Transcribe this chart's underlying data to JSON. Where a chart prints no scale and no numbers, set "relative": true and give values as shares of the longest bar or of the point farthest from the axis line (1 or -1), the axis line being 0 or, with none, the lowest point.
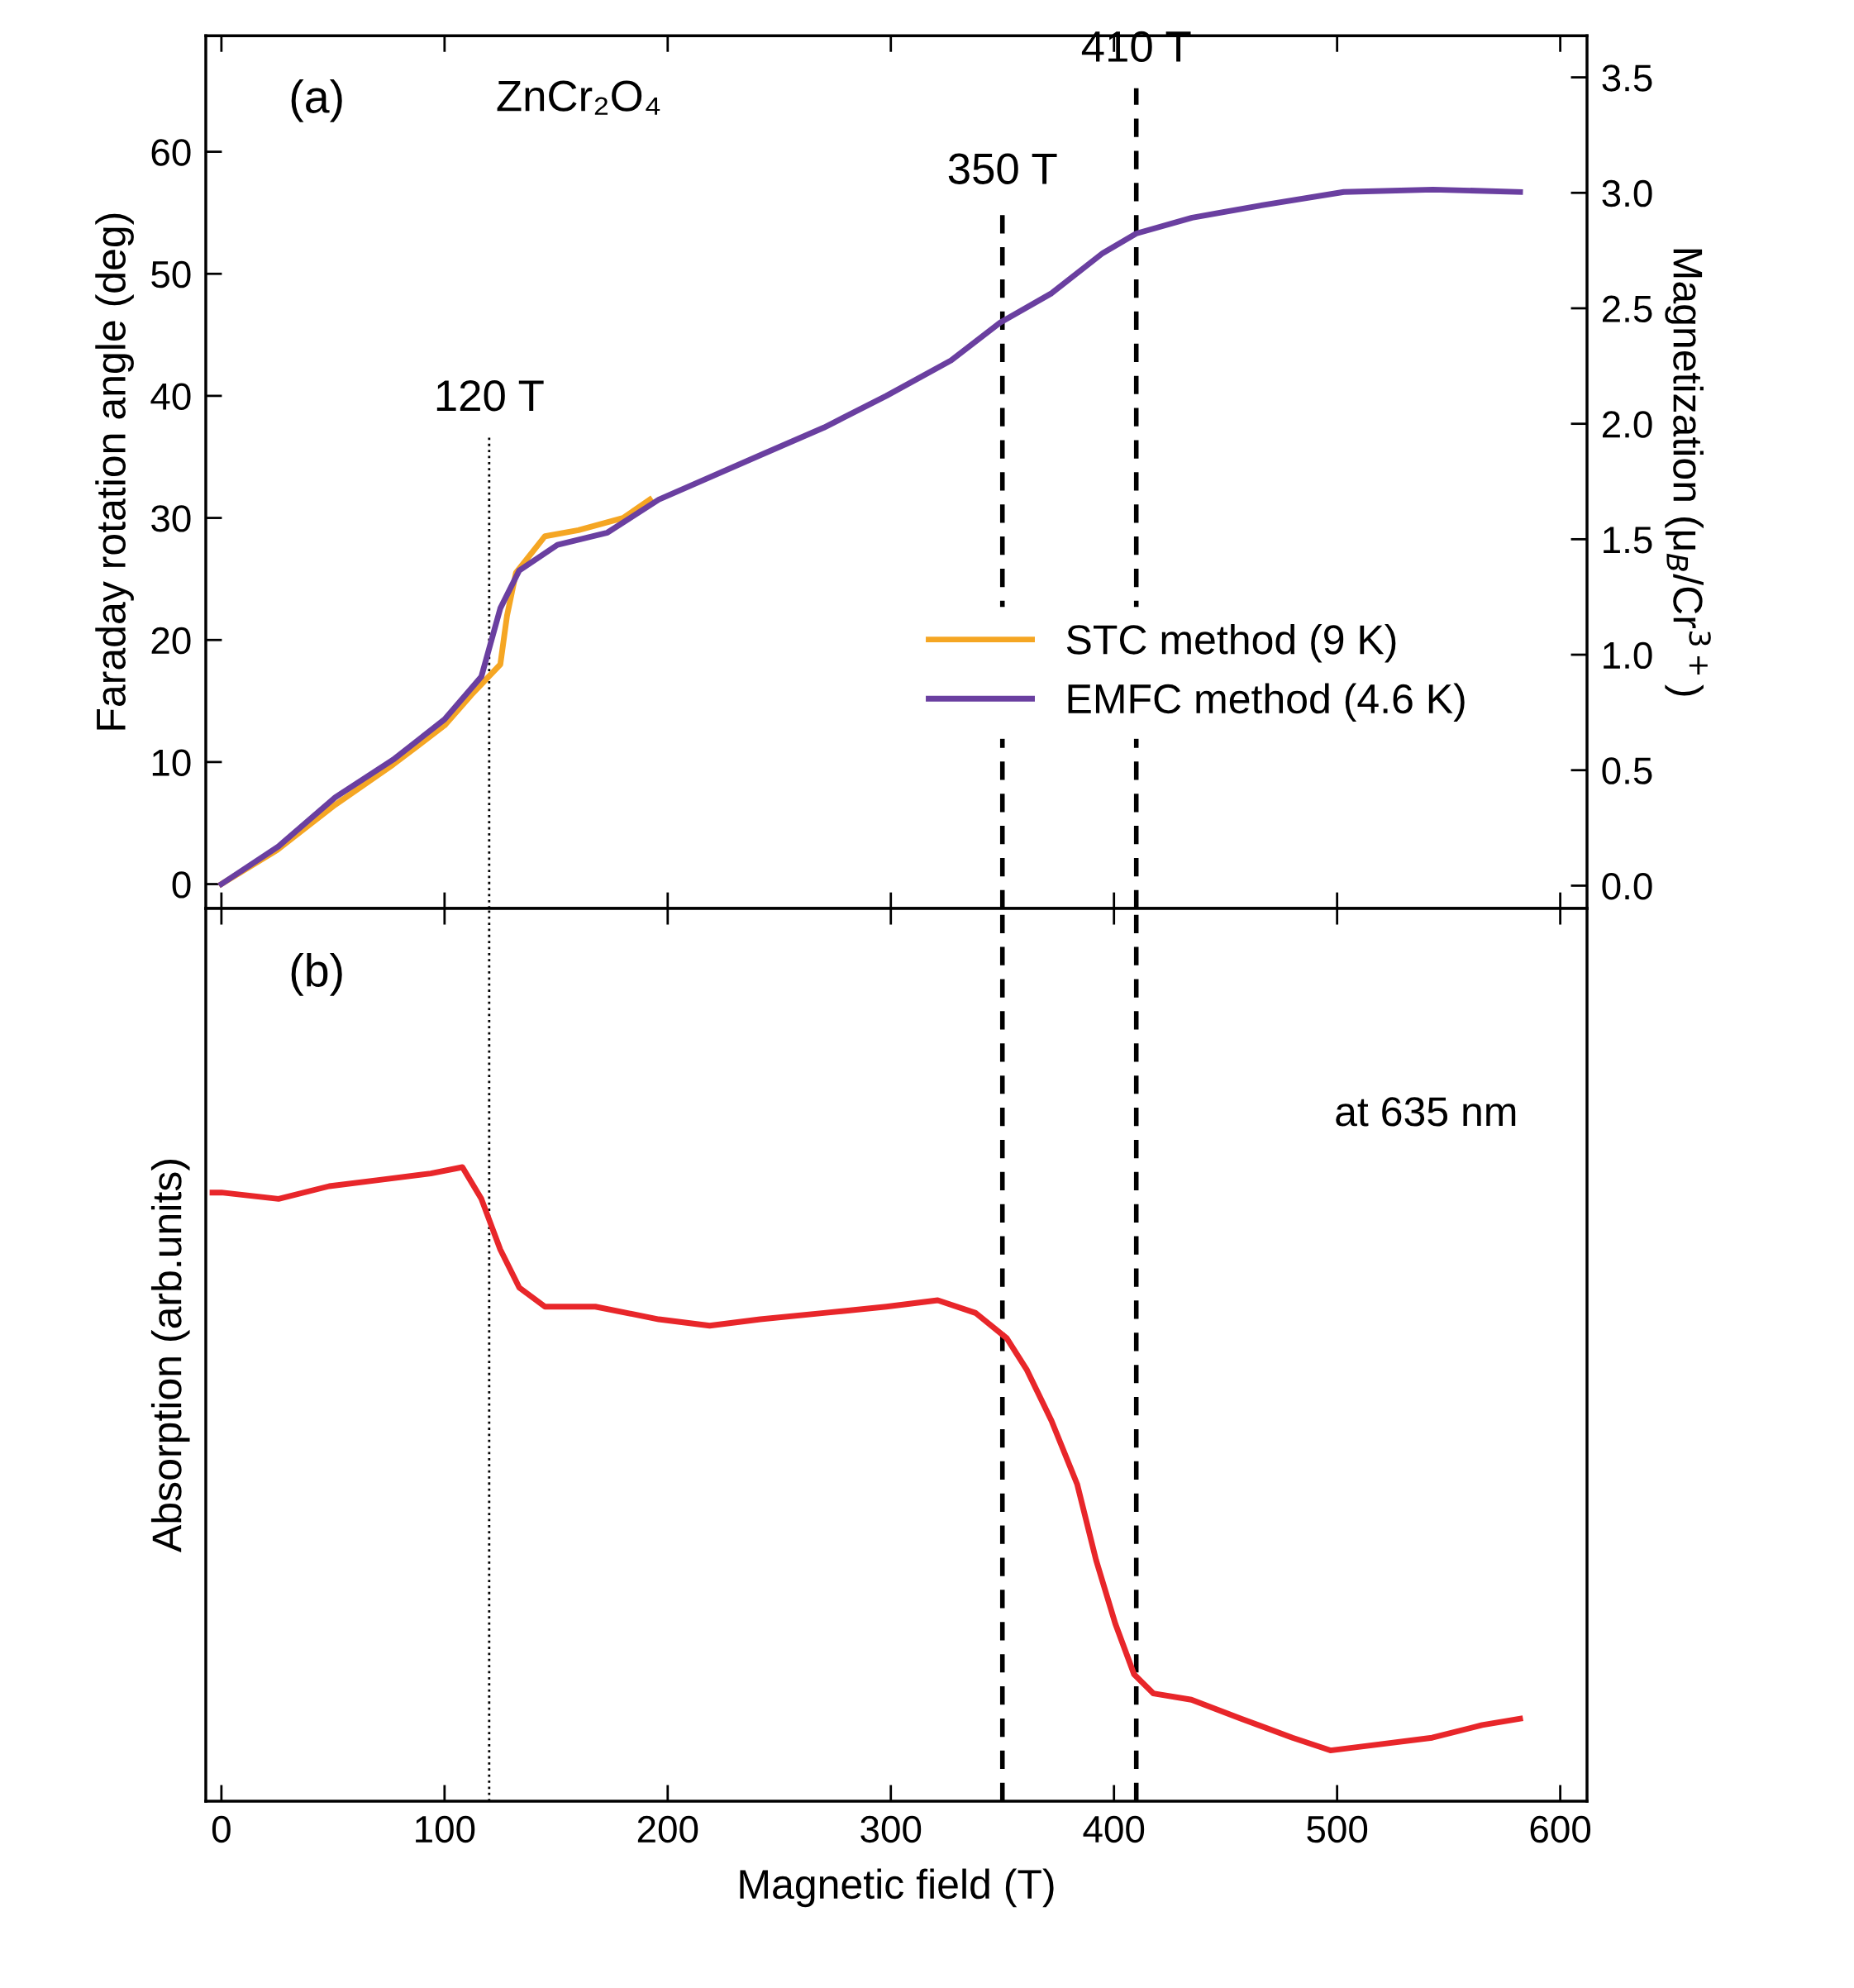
{
  "chart_data": [
    {
      "type": "line",
      "title": "(a)",
      "ylabel": "Faraday rotation angle (deg)",
      "y2label": "Magnetization (μ$_{B}$/Cr$^{3+}$)",
      "xlim": [
        -7,
        612
      ],
      "xticks": [
        0,
        100,
        200,
        300,
        400,
        500,
        600
      ],
      "ylim": [
        -2,
        69.5
      ],
      "yticks": [
        0,
        10,
        20,
        30,
        40,
        50,
        60
      ],
      "y2lim": [
        -0.099,
        3.68
      ],
      "y2ticks": [
        {
          "value": 0,
          "label": "0.0"
        },
        0.5,
        {
          "value": 1,
          "label": "1.0"
        },
        1.5,
        {
          "value": 2,
          "label": "2.0"
        },
        2.5,
        {
          "value": 3,
          "label": "3.0"
        },
        3.5
      ],
      "tick_labels": "y",
      "legend": "right",
      "grid": false,
      "annotations": [
        "ZnCr₂O₄"
      ],
      "ref_lines": [
        {
          "axis": "x",
          "value": 120,
          "label": "120 T",
          "line_style": "dotted",
          "color": "#000000"
        },
        {
          "axis": "x",
          "value": 350,
          "label": "350 T",
          "line_style": "dashed",
          "color": "#000000"
        },
        {
          "axis": "x",
          "value": 410,
          "label": "410 T",
          "line_style": "dashed",
          "color": "#000000"
        }
      ],
      "series": [
        {
          "name": "STC method (9 K)",
          "color": "#f5a623",
          "x": [
            0,
            25,
            51,
            77,
            100,
            112,
            125,
            128,
            132,
            145,
            160,
            180,
            192
          ],
          "values": [
            0,
            2.8,
            6.5,
            9.8,
            13,
            15.5,
            18,
            22,
            25.5,
            28.5,
            29,
            30,
            31.5
          ]
        },
        {
          "name": "EMFC method (4.6 K)",
          "color": "#6a3fa0",
          "x": [
            0,
            25.6,
            51,
            77,
            100,
            116.5,
            125,
            133.5,
            150.6,
            173,
            196,
            241,
            270,
            298,
            327,
            349,
            372,
            395,
            410,
            435,
            469,
            503,
            543,
            582
          ],
          "values": [
            0,
            3.1,
            7.1,
            10.2,
            13.5,
            17,
            22.6,
            25.7,
            27.8,
            28.8,
            31.5,
            35.1,
            37.4,
            40,
            42.9,
            46,
            48.4,
            51.7,
            53.3,
            54.6,
            55.7,
            56.7,
            56.9,
            56.7
          ]
        }
      ]
    },
    {
      "type": "line",
      "title": "(b)",
      "xlabel": "Magnetic field (T)",
      "ylabel": "Absorption (arb.units)",
      "relative": true,
      "xlim": [
        -7,
        612
      ],
      "xticks": [
        0,
        100,
        200,
        300,
        400,
        500,
        600
      ],
      "tick_labels": "x",
      "grid": false,
      "annotations": [
        "at 635 nm"
      ],
      "ref_lines": [
        {
          "axis": "x",
          "value": 120,
          "line_style": "dotted",
          "color": "#000000"
        },
        {
          "axis": "x",
          "value": 350,
          "line_style": "dashed",
          "color": "#000000"
        },
        {
          "axis": "x",
          "value": 410,
          "line_style": "dashed",
          "color": "#000000"
        }
      ],
      "series": [
        {
          "color": "#e8262a",
          "x": [
            -4,
            0,
            25.6,
            48.3,
            71,
            93.8,
            108,
            116.5,
            125,
            133.5,
            145,
            167.6,
            196,
            218.8,
            241.5,
            270,
            298,
            321,
            338,
            352,
            361,
            372,
            383.5,
            392,
            400.6,
            409,
            417.6,
            434.7,
            457,
            480,
            497,
            520,
            542.6,
            565,
            582
          ],
          "values": [
            0.96,
            0.96,
            0.95,
            0.97,
            0.98,
            0.99,
            1.0,
            0.95,
            0.87,
            0.81,
            0.78,
            0.78,
            0.76,
            0.75,
            0.76,
            0.77,
            0.78,
            0.79,
            0.77,
            0.73,
            0.68,
            0.6,
            0.5,
            0.38,
            0.28,
            0.2,
            0.17,
            0.16,
            0.13,
            0.1,
            0.08,
            0.09,
            0.1,
            0.12,
            0.13
          ]
        }
      ]
    }
  ]
}
